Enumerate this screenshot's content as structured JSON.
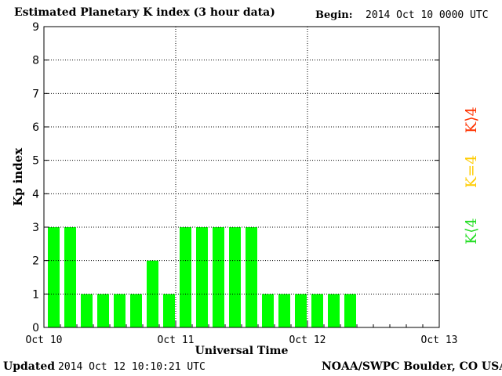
{
  "header": {
    "title": "Estimated Planetary K index (3 hour data)",
    "begin_label": "Begin:",
    "begin_value": "2014 Oct 10 0000 UTC"
  },
  "footer": {
    "updated_label": "Updated",
    "updated_value": "2014 Oct 12 10:10:21 UTC",
    "credit": "NOAA/SWPC Boulder, CO USA"
  },
  "legend": {
    "above": {
      "label": "K⟩4",
      "color": "#ff3300"
    },
    "equal": {
      "label": "K=4",
      "color": "#ffcc00"
    },
    "below": {
      "label": "K⟨4",
      "color": "#22dd22"
    }
  },
  "chart_data": {
    "type": "bar",
    "title": "Estimated Planetary K index (3 hour data)",
    "xlabel": "Universal Time",
    "ylabel": "Kp index",
    "ylim": [
      0,
      9
    ],
    "yticks": [
      "0",
      "1",
      "2",
      "3",
      "4",
      "5",
      "6",
      "7",
      "8",
      "9"
    ],
    "xticks": [
      "Oct 10",
      "Oct 11",
      "Oct 12",
      "Oct 13"
    ],
    "x_intervals_total": 24,
    "bar_color": "#00ff00",
    "grid": true,
    "values": [
      3,
      3,
      1,
      1,
      1,
      1,
      2,
      1,
      3,
      3,
      3,
      3,
      3,
      1,
      1,
      1,
      1,
      1,
      1
    ]
  }
}
